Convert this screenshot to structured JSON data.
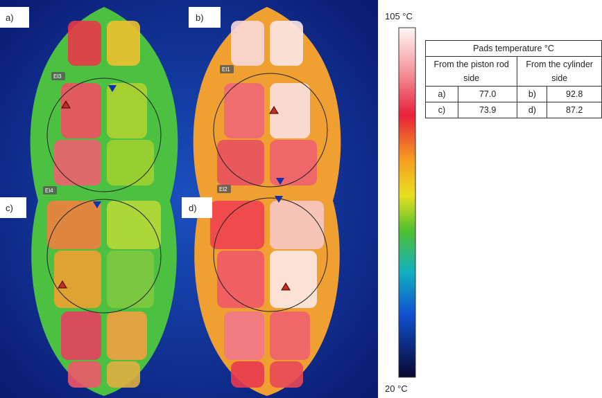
{
  "panels": [
    {
      "label": "a)",
      "sensor": "El3"
    },
    {
      "label": "b)",
      "sensor": "El1"
    },
    {
      "label": "c)",
      "sensor": "El4"
    },
    {
      "label": "d)",
      "sensor": "El2"
    }
  ],
  "colorbar": {
    "max_label": "105 °C",
    "min_label": "20 °C"
  },
  "table": {
    "title": "Pads temperature °C",
    "headers": [
      "From the piston rod side",
      "From the cylinder side"
    ],
    "rows": [
      [
        "a)",
        "77.0",
        "b)",
        "92.8"
      ],
      [
        "c)",
        "73.9",
        "d)",
        "87.2"
      ]
    ]
  }
}
